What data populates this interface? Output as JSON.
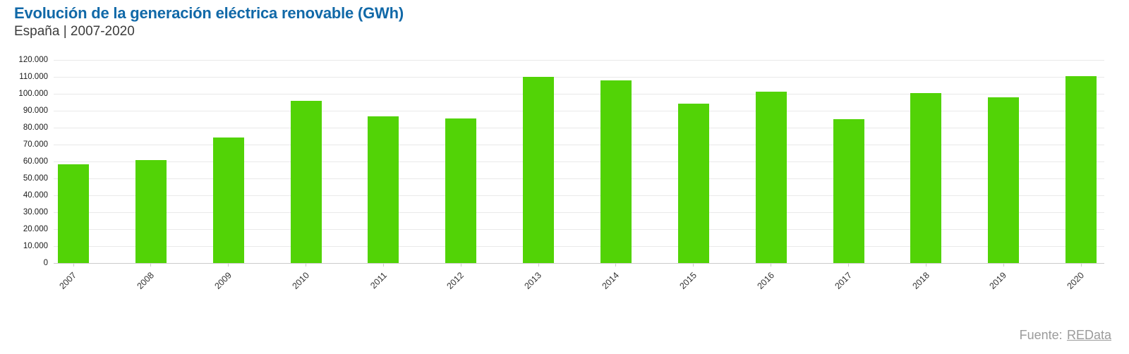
{
  "header": {
    "title": "Evolución de la generación eléctrica renovable (GWh)",
    "subtitle": "España | 2007-2020"
  },
  "chart_data": {
    "type": "bar",
    "title": "Evolución de la generación eléctrica renovable (GWh)",
    "subtitle": "España | 2007-2020",
    "categories": [
      "2007",
      "2008",
      "2009",
      "2010",
      "2011",
      "2012",
      "2013",
      "2014",
      "2015",
      "2016",
      "2017",
      "2018",
      "2019",
      "2020"
    ],
    "values": [
      58200,
      60700,
      74100,
      95800,
      86700,
      85400,
      110100,
      108100,
      94100,
      101200,
      84800,
      100400,
      97800,
      110400
    ],
    "unit": "GWh",
    "ylim": [
      0,
      120000
    ],
    "ytick_step": 10000,
    "ytick_labels": [
      "0",
      "10.000",
      "20.000",
      "30.000",
      "40.000",
      "50.000",
      "60.000",
      "70.000",
      "80.000",
      "90.000",
      "100.000",
      "110.000",
      "120.000"
    ],
    "grid": "horizontal-on",
    "legend": "none",
    "bar_color": "#52d306"
  },
  "source": {
    "prefix": "Fuente:",
    "link_label": "REData"
  },
  "colors": {
    "title": "#1169a8",
    "subtitle": "#3c3c3c",
    "bar": "#52d306",
    "gridline": "#e9e9e9",
    "axis": "#cccccc",
    "tick_label": "#1a1a1a",
    "source": "#9b9b9b"
  }
}
